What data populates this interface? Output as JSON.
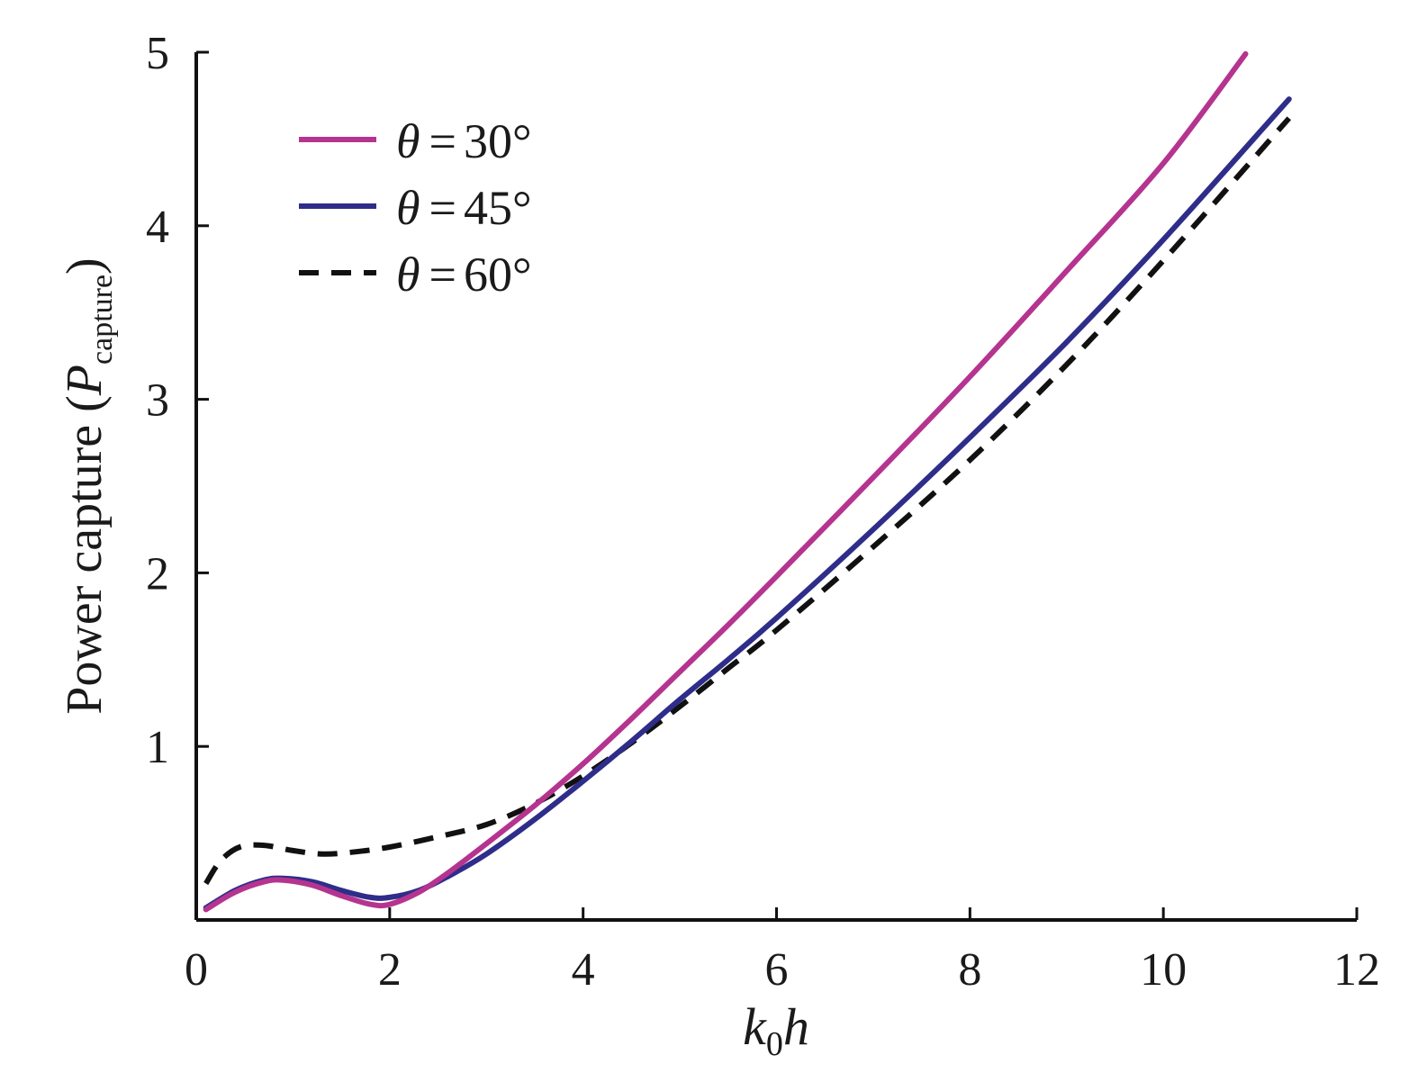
{
  "chart_data": {
    "type": "line",
    "title": "",
    "xlabel": {
      "main": "k",
      "sub": "0",
      "tail": "h"
    },
    "ylabel": {
      "prefix": "Power capture (",
      "var": "P",
      "sub": "capture",
      "suffix": ")"
    },
    "xlim": [
      0,
      12
    ],
    "ylim": [
      0,
      5
    ],
    "x_ticks": [
      0,
      2,
      4,
      6,
      8,
      10,
      12
    ],
    "y_ticks": [
      1,
      2,
      3,
      4,
      5
    ],
    "x_tick_labels": [
      "0",
      "2",
      "4",
      "6",
      "8",
      "10",
      "12"
    ],
    "y_tick_labels": [
      "1",
      "2",
      "3",
      "4",
      "5"
    ],
    "grid": false,
    "legend_position": "top-left",
    "series": [
      {
        "name": "θ = 30°",
        "legend": {
          "var": "θ",
          "eq": "=",
          "value": "30°"
        },
        "color": "#b5348f",
        "dash": "solid",
        "x": [
          0.1,
          0.4,
          0.7,
          0.9,
          1.2,
          1.5,
          1.8,
          2.0,
          2.3,
          2.6,
          3.0,
          3.5,
          4.0,
          4.5,
          5.0,
          5.5,
          6.0,
          7.0,
          8.0,
          9.0,
          10.0,
          10.85
        ],
        "y": [
          0.06,
          0.16,
          0.22,
          0.23,
          0.2,
          0.14,
          0.09,
          0.09,
          0.16,
          0.27,
          0.44,
          0.66,
          0.9,
          1.16,
          1.43,
          1.7,
          1.98,
          2.55,
          3.13,
          3.74,
          4.36,
          4.99
        ]
      },
      {
        "name": "θ = 45°",
        "legend": {
          "var": "θ",
          "eq": "=",
          "value": "45°"
        },
        "color": "#2e2d8a",
        "dash": "solid",
        "x": [
          0.1,
          0.4,
          0.7,
          0.9,
          1.2,
          1.5,
          1.8,
          2.0,
          2.3,
          2.6,
          3.0,
          3.5,
          4.0,
          4.5,
          5.0,
          5.5,
          6.0,
          7.0,
          8.0,
          9.0,
          10.0,
          11.3
        ],
        "y": [
          0.07,
          0.17,
          0.23,
          0.24,
          0.22,
          0.17,
          0.13,
          0.13,
          0.17,
          0.25,
          0.38,
          0.58,
          0.8,
          1.03,
          1.27,
          1.5,
          1.74,
          2.25,
          2.78,
          3.33,
          3.92,
          4.73
        ]
      },
      {
        "name": "θ = 60°",
        "legend": {
          "var": "θ",
          "eq": "=",
          "value": "60°"
        },
        "color": "#111111",
        "dash": "dashed",
        "x": [
          0.1,
          0.25,
          0.45,
          0.7,
          1.0,
          1.3,
          1.6,
          2.0,
          2.5,
          3.0,
          3.5,
          4.0,
          4.5,
          5.0,
          5.5,
          6.0,
          7.0,
          8.0,
          9.0,
          10.0,
          11.3
        ],
        "y": [
          0.21,
          0.34,
          0.42,
          0.43,
          0.4,
          0.38,
          0.39,
          0.42,
          0.48,
          0.55,
          0.67,
          0.83,
          1.02,
          1.23,
          1.45,
          1.67,
          2.15,
          2.65,
          3.2,
          3.8,
          4.62
        ]
      }
    ]
  }
}
